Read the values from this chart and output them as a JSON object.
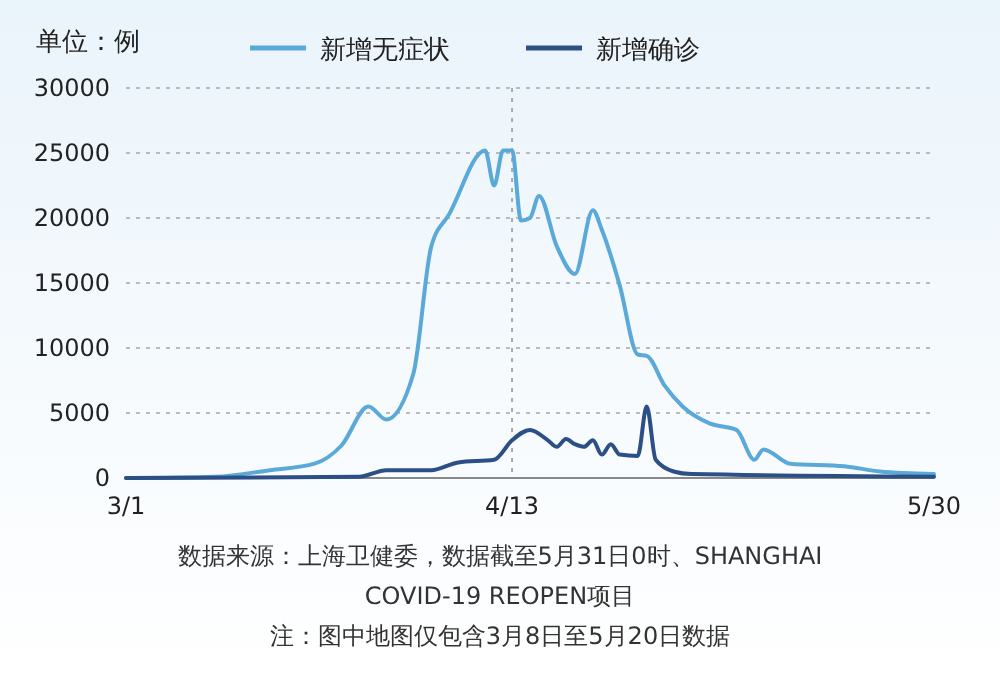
{
  "chart_data": {
    "type": "line",
    "ylabel": "单位：例",
    "legend": "top",
    "grid": "y",
    "marker": "none",
    "line_style": "solid",
    "xlim": [
      "--03-01",
      "--05-30"
    ],
    "xticks": [
      {
        "value": "--03-01",
        "label": "3/1"
      },
      {
        "value": "--04-13",
        "label": "4/13"
      },
      {
        "value": "--05-30",
        "label": "5/30"
      }
    ],
    "ylim": [
      0,
      30000
    ],
    "yticks": [
      0,
      5000,
      10000,
      15000,
      20000,
      25000,
      30000
    ],
    "ref_lines": [
      {
        "axis": "x",
        "value": "--04-13",
        "label": null,
        "line_style": "dotted",
        "color": "#aaaaaa"
      }
    ],
    "series": [
      {
        "name": "新增无症状",
        "color": "#5aa9d9",
        "x": [
          "--03-01",
          "--03-11",
          "--03-17",
          "--03-22",
          "--03-25",
          "--03-28",
          "--03-30",
          "--04-02",
          "--04-04",
          "--04-06",
          "--04-10",
          "--04-11",
          "--04-12",
          "--04-13",
          "--04-14",
          "--04-15",
          "--04-16",
          "--04-18",
          "--04-20",
          "--04-22",
          "--04-23",
          "--04-25",
          "--04-27",
          "--04-28",
          "--04-30",
          "--05-02",
          "--05-05",
          "--05-08",
          "--05-10",
          "--05-11",
          "--05-14",
          "--05-20",
          "--05-24",
          "--05-30"
        ],
        "values": [
          0,
          100,
          600,
          1100,
          2500,
          5500,
          4500,
          8000,
          17800,
          20300,
          25200,
          22500,
          25200,
          25200,
          19800,
          20000,
          21700,
          17800,
          15700,
          20600,
          19100,
          14800,
          9500,
          9400,
          7100,
          5500,
          4200,
          3700,
          1400,
          2200,
          1100,
          900,
          500,
          300
        ]
      },
      {
        "name": "新增确诊",
        "color": "#2c4f86",
        "x": [
          "--03-01",
          "--03-27",
          "--03-30",
          "--04-04",
          "--04-07",
          "--04-11",
          "--04-13",
          "--04-15",
          "--04-17",
          "--04-18",
          "--04-19",
          "--04-20",
          "--04-21",
          "--04-22",
          "--04-23",
          "--04-24",
          "--04-25",
          "--04-27",
          "--04-28",
          "--04-29",
          "--05-01",
          "--05-03",
          "--05-30"
        ],
        "values": [
          0,
          100,
          600,
          600,
          1200,
          1400,
          2900,
          3700,
          2900,
          2400,
          3000,
          2600,
          2400,
          2900,
          1800,
          2600,
          1800,
          1700,
          5500,
          1400,
          500,
          300,
          100
        ]
      }
    ],
    "annotations": [
      "数据来源：上海卫健委，数据截至5月31日0时、SHANGHAI COVID-19 REOPEN项目",
      "注：图中地图仅包含3月8日至5月20日数据"
    ]
  }
}
